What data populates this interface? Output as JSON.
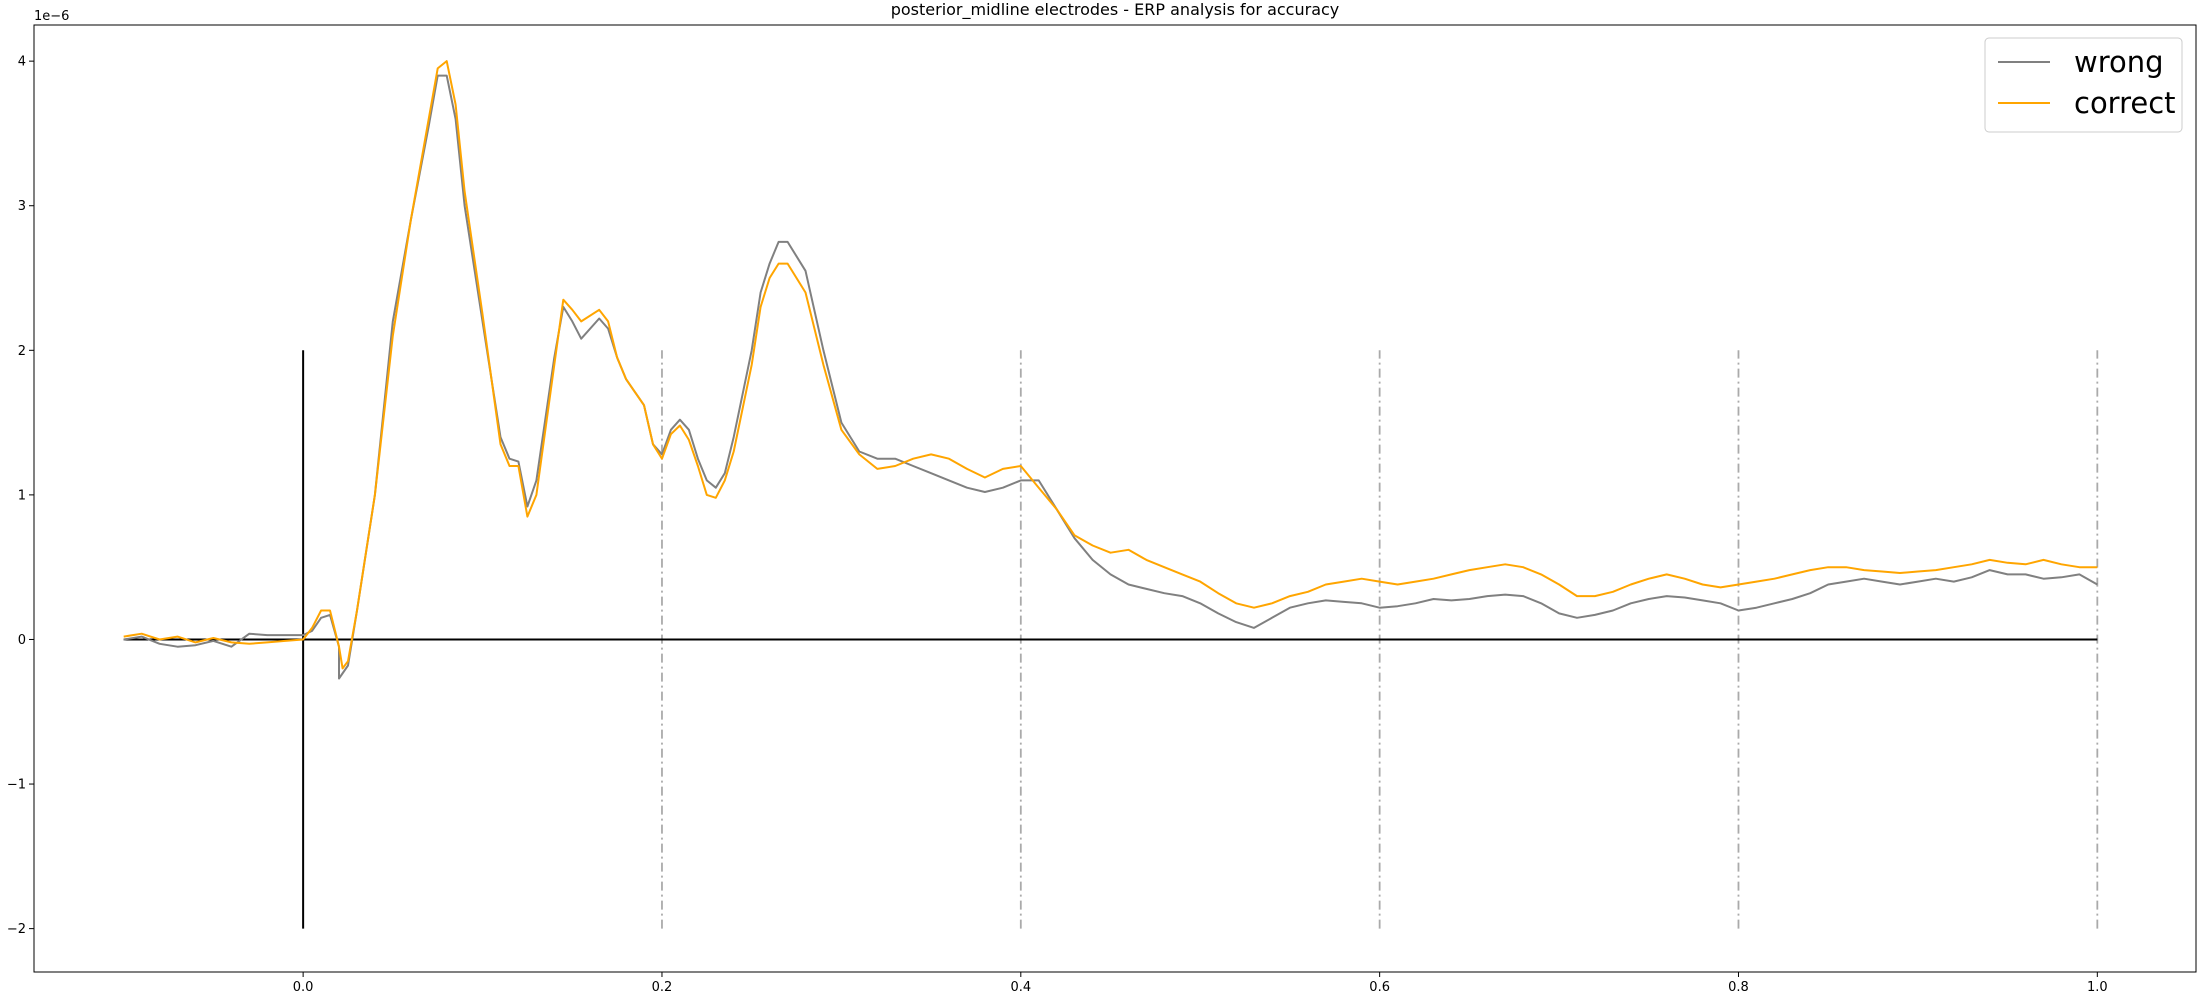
{
  "chart_data": {
    "type": "line",
    "title": "posterior_midline electrodes - ERP analysis for accuracy",
    "xlabel": "",
    "ylabel": "",
    "offset_label": "1e−6",
    "xlim": [
      -0.15,
      1.055
    ],
    "ylim": [
      -2.3,
      4.25
    ],
    "x_ticks": [
      0.0,
      0.2,
      0.4,
      0.6,
      0.8,
      1.0
    ],
    "x_tick_labels": [
      "0.0",
      "0.2",
      "0.4",
      "0.6",
      "0.8",
      "1.0"
    ],
    "y_ticks": [
      -2,
      -1,
      0,
      1,
      2,
      3,
      4
    ],
    "y_tick_labels": [
      "−2",
      "−1",
      "0",
      "1",
      "2",
      "3",
      "4"
    ],
    "grid": false,
    "legend_position": "top-right",
    "reference_lines": {
      "zero_line": {
        "x_range": [
          -0.1,
          1.0
        ],
        "y": 0,
        "color": "#000000"
      },
      "stimulus_onset": {
        "x": 0.0,
        "y_range": [
          -2,
          2
        ],
        "color": "#000000"
      },
      "markers": {
        "x": [
          0.2,
          0.4,
          0.6,
          0.8,
          1.0
        ],
        "y_range": [
          -2,
          2
        ],
        "color": "#aaaaaa",
        "style": "dash-dot"
      }
    },
    "series": [
      {
        "name": "wrong",
        "color": "#808080",
        "points": [
          [
            -0.1,
            0.0
          ],
          [
            -0.09,
            0.02
          ],
          [
            -0.08,
            -0.03
          ],
          [
            -0.07,
            -0.05
          ],
          [
            -0.06,
            -0.04
          ],
          [
            -0.05,
            -0.01
          ],
          [
            -0.04,
            -0.05
          ],
          [
            -0.03,
            0.04
          ],
          [
            -0.02,
            0.03
          ],
          [
            -0.01,
            0.03
          ],
          [
            0.0,
            0.03
          ],
          [
            0.005,
            0.06
          ],
          [
            0.01,
            0.15
          ],
          [
            0.015,
            0.17
          ],
          [
            0.02,
            -0.05
          ],
          [
            0.02,
            -0.27
          ],
          [
            0.025,
            -0.18
          ],
          [
            0.03,
            0.2
          ],
          [
            0.04,
            1.0
          ],
          [
            0.05,
            2.2
          ],
          [
            0.06,
            2.9
          ],
          [
            0.07,
            3.55
          ],
          [
            0.075,
            3.9
          ],
          [
            0.08,
            3.9
          ],
          [
            0.085,
            3.6
          ],
          [
            0.09,
            3.0
          ],
          [
            0.1,
            2.2
          ],
          [
            0.11,
            1.4
          ],
          [
            0.115,
            1.25
          ],
          [
            0.12,
            1.23
          ],
          [
            0.125,
            0.92
          ],
          [
            0.13,
            1.1
          ],
          [
            0.14,
            1.95
          ],
          [
            0.145,
            2.3
          ],
          [
            0.15,
            2.2
          ],
          [
            0.155,
            2.08
          ],
          [
            0.165,
            2.22
          ],
          [
            0.17,
            2.15
          ],
          [
            0.175,
            1.95
          ],
          [
            0.18,
            1.8
          ],
          [
            0.19,
            1.62
          ],
          [
            0.195,
            1.35
          ],
          [
            0.2,
            1.28
          ],
          [
            0.205,
            1.45
          ],
          [
            0.21,
            1.52
          ],
          [
            0.215,
            1.45
          ],
          [
            0.22,
            1.25
          ],
          [
            0.225,
            1.1
          ],
          [
            0.23,
            1.05
          ],
          [
            0.235,
            1.15
          ],
          [
            0.24,
            1.4
          ],
          [
            0.25,
            2.0
          ],
          [
            0.255,
            2.4
          ],
          [
            0.26,
            2.6
          ],
          [
            0.265,
            2.75
          ],
          [
            0.27,
            2.75
          ],
          [
            0.28,
            2.55
          ],
          [
            0.29,
            2.0
          ],
          [
            0.3,
            1.5
          ],
          [
            0.31,
            1.3
          ],
          [
            0.32,
            1.25
          ],
          [
            0.33,
            1.25
          ],
          [
            0.34,
            1.2
          ],
          [
            0.35,
            1.15
          ],
          [
            0.36,
            1.1
          ],
          [
            0.37,
            1.05
          ],
          [
            0.38,
            1.02
          ],
          [
            0.39,
            1.05
          ],
          [
            0.4,
            1.1
          ],
          [
            0.41,
            1.1
          ],
          [
            0.42,
            0.9
          ],
          [
            0.43,
            0.7
          ],
          [
            0.44,
            0.55
          ],
          [
            0.45,
            0.45
          ],
          [
            0.46,
            0.38
          ],
          [
            0.47,
            0.35
          ],
          [
            0.48,
            0.32
          ],
          [
            0.49,
            0.3
          ],
          [
            0.5,
            0.25
          ],
          [
            0.51,
            0.18
          ],
          [
            0.52,
            0.12
          ],
          [
            0.53,
            0.08
          ],
          [
            0.54,
            0.15
          ],
          [
            0.55,
            0.22
          ],
          [
            0.56,
            0.25
          ],
          [
            0.57,
            0.27
          ],
          [
            0.58,
            0.26
          ],
          [
            0.59,
            0.25
          ],
          [
            0.6,
            0.22
          ],
          [
            0.61,
            0.23
          ],
          [
            0.62,
            0.25
          ],
          [
            0.63,
            0.28
          ],
          [
            0.64,
            0.27
          ],
          [
            0.65,
            0.28
          ],
          [
            0.66,
            0.3
          ],
          [
            0.67,
            0.31
          ],
          [
            0.68,
            0.3
          ],
          [
            0.69,
            0.25
          ],
          [
            0.7,
            0.18
          ],
          [
            0.71,
            0.15
          ],
          [
            0.72,
            0.17
          ],
          [
            0.73,
            0.2
          ],
          [
            0.74,
            0.25
          ],
          [
            0.75,
            0.28
          ],
          [
            0.76,
            0.3
          ],
          [
            0.77,
            0.29
          ],
          [
            0.78,
            0.27
          ],
          [
            0.79,
            0.25
          ],
          [
            0.8,
            0.2
          ],
          [
            0.81,
            0.22
          ],
          [
            0.82,
            0.25
          ],
          [
            0.83,
            0.28
          ],
          [
            0.84,
            0.32
          ],
          [
            0.85,
            0.38
          ],
          [
            0.86,
            0.4
          ],
          [
            0.87,
            0.42
          ],
          [
            0.88,
            0.4
          ],
          [
            0.89,
            0.38
          ],
          [
            0.9,
            0.4
          ],
          [
            0.91,
            0.42
          ],
          [
            0.92,
            0.4
          ],
          [
            0.93,
            0.43
          ],
          [
            0.94,
            0.48
          ],
          [
            0.95,
            0.45
          ],
          [
            0.96,
            0.45
          ],
          [
            0.97,
            0.42
          ],
          [
            0.98,
            0.43
          ],
          [
            0.99,
            0.45
          ],
          [
            1.0,
            0.38
          ]
        ]
      },
      {
        "name": "correct",
        "color": "#ffa500",
        "points": [
          [
            -0.1,
            0.02
          ],
          [
            -0.09,
            0.04
          ],
          [
            -0.08,
            0.0
          ],
          [
            -0.07,
            0.02
          ],
          [
            -0.06,
            -0.02
          ],
          [
            -0.05,
            0.01
          ],
          [
            -0.04,
            -0.02
          ],
          [
            -0.03,
            -0.03
          ],
          [
            -0.02,
            -0.02
          ],
          [
            -0.01,
            -0.01
          ],
          [
            0.0,
            0.0
          ],
          [
            0.005,
            0.08
          ],
          [
            0.01,
            0.2
          ],
          [
            0.015,
            0.2
          ],
          [
            0.02,
            -0.05
          ],
          [
            0.022,
            -0.2
          ],
          [
            0.025,
            -0.15
          ],
          [
            0.03,
            0.2
          ],
          [
            0.04,
            1.0
          ],
          [
            0.05,
            2.1
          ],
          [
            0.06,
            2.9
          ],
          [
            0.07,
            3.6
          ],
          [
            0.075,
            3.95
          ],
          [
            0.08,
            4.0
          ],
          [
            0.085,
            3.7
          ],
          [
            0.09,
            3.1
          ],
          [
            0.1,
            2.25
          ],
          [
            0.11,
            1.35
          ],
          [
            0.115,
            1.2
          ],
          [
            0.12,
            1.2
          ],
          [
            0.125,
            0.85
          ],
          [
            0.13,
            1.0
          ],
          [
            0.14,
            1.9
          ],
          [
            0.145,
            2.35
          ],
          [
            0.15,
            2.28
          ],
          [
            0.155,
            2.2
          ],
          [
            0.165,
            2.28
          ],
          [
            0.17,
            2.2
          ],
          [
            0.175,
            1.95
          ],
          [
            0.18,
            1.8
          ],
          [
            0.19,
            1.62
          ],
          [
            0.195,
            1.35
          ],
          [
            0.2,
            1.25
          ],
          [
            0.205,
            1.42
          ],
          [
            0.21,
            1.48
          ],
          [
            0.215,
            1.38
          ],
          [
            0.22,
            1.2
          ],
          [
            0.225,
            1.0
          ],
          [
            0.23,
            0.98
          ],
          [
            0.235,
            1.1
          ],
          [
            0.24,
            1.3
          ],
          [
            0.25,
            1.9
          ],
          [
            0.255,
            2.3
          ],
          [
            0.26,
            2.5
          ],
          [
            0.265,
            2.6
          ],
          [
            0.27,
            2.6
          ],
          [
            0.28,
            2.4
          ],
          [
            0.29,
            1.9
          ],
          [
            0.3,
            1.45
          ],
          [
            0.31,
            1.28
          ],
          [
            0.32,
            1.18
          ],
          [
            0.33,
            1.2
          ],
          [
            0.34,
            1.25
          ],
          [
            0.35,
            1.28
          ],
          [
            0.36,
            1.25
          ],
          [
            0.37,
            1.18
          ],
          [
            0.38,
            1.12
          ],
          [
            0.39,
            1.18
          ],
          [
            0.4,
            1.2
          ],
          [
            0.41,
            1.05
          ],
          [
            0.42,
            0.9
          ],
          [
            0.43,
            0.72
          ],
          [
            0.44,
            0.65
          ],
          [
            0.45,
            0.6
          ],
          [
            0.46,
            0.62
          ],
          [
            0.47,
            0.55
          ],
          [
            0.48,
            0.5
          ],
          [
            0.49,
            0.45
          ],
          [
            0.5,
            0.4
          ],
          [
            0.51,
            0.32
          ],
          [
            0.52,
            0.25
          ],
          [
            0.53,
            0.22
          ],
          [
            0.54,
            0.25
          ],
          [
            0.55,
            0.3
          ],
          [
            0.56,
            0.33
          ],
          [
            0.57,
            0.38
          ],
          [
            0.58,
            0.4
          ],
          [
            0.59,
            0.42
          ],
          [
            0.6,
            0.4
          ],
          [
            0.61,
            0.38
          ],
          [
            0.62,
            0.4
          ],
          [
            0.63,
            0.42
          ],
          [
            0.64,
            0.45
          ],
          [
            0.65,
            0.48
          ],
          [
            0.66,
            0.5
          ],
          [
            0.67,
            0.52
          ],
          [
            0.68,
            0.5
          ],
          [
            0.69,
            0.45
          ],
          [
            0.7,
            0.38
          ],
          [
            0.71,
            0.3
          ],
          [
            0.72,
            0.3
          ],
          [
            0.73,
            0.33
          ],
          [
            0.74,
            0.38
          ],
          [
            0.75,
            0.42
          ],
          [
            0.76,
            0.45
          ],
          [
            0.77,
            0.42
          ],
          [
            0.78,
            0.38
          ],
          [
            0.79,
            0.36
          ],
          [
            0.8,
            0.38
          ],
          [
            0.81,
            0.4
          ],
          [
            0.82,
            0.42
          ],
          [
            0.83,
            0.45
          ],
          [
            0.84,
            0.48
          ],
          [
            0.85,
            0.5
          ],
          [
            0.86,
            0.5
          ],
          [
            0.87,
            0.48
          ],
          [
            0.88,
            0.47
          ],
          [
            0.89,
            0.46
          ],
          [
            0.9,
            0.47
          ],
          [
            0.91,
            0.48
          ],
          [
            0.92,
            0.5
          ],
          [
            0.93,
            0.52
          ],
          [
            0.94,
            0.55
          ],
          [
            0.95,
            0.53
          ],
          [
            0.96,
            0.52
          ],
          [
            0.97,
            0.55
          ],
          [
            0.98,
            0.52
          ],
          [
            0.99,
            0.5
          ],
          [
            1.0,
            0.5
          ]
        ]
      }
    ]
  }
}
